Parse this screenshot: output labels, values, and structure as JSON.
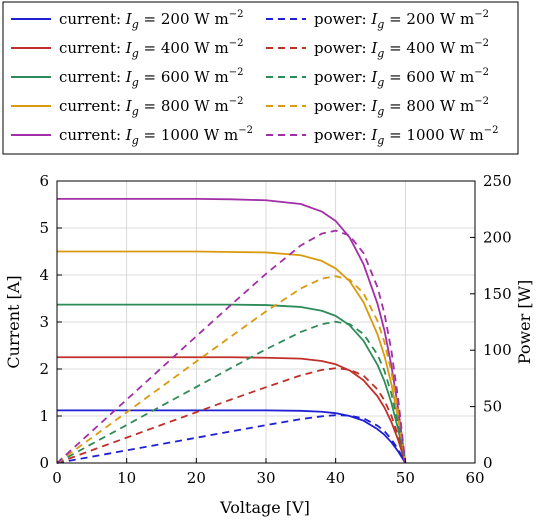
{
  "chart_data": {
    "type": "line",
    "title": "",
    "xlabel": "Voltage [V]",
    "ylabel": "Current [A]",
    "y2label": "Power [W]",
    "xlim": [
      0,
      60
    ],
    "ylim": [
      0,
      6
    ],
    "y2lim": [
      0,
      250
    ],
    "xticks": [
      "0",
      "10",
      "20",
      "30",
      "40",
      "50",
      "60"
    ],
    "yticks": [
      "0",
      "1",
      "2",
      "3",
      "4",
      "5",
      "6"
    ],
    "y2ticks": [
      "0",
      "50",
      "100",
      "150",
      "200",
      "250"
    ],
    "grid": true,
    "legend_position": "top",
    "x": [
      0,
      5,
      10,
      15,
      20,
      25,
      30,
      35,
      38,
      40,
      42,
      44,
      46,
      47,
      48,
      49,
      50
    ],
    "series": [
      {
        "name": "current: I_g = 200 W m^-2",
        "axis": "left",
        "style": "solid",
        "color": "#1f1fd6",
        "values": [
          1.12,
          1.12,
          1.12,
          1.12,
          1.12,
          1.12,
          1.12,
          1.11,
          1.09,
          1.06,
          1.0,
          0.9,
          0.72,
          0.6,
          0.44,
          0.24,
          0.0
        ]
      },
      {
        "name": "current: I_g = 400 W m^-2",
        "axis": "left",
        "style": "solid",
        "color": "#c0302a",
        "values": [
          2.25,
          2.25,
          2.25,
          2.25,
          2.25,
          2.25,
          2.24,
          2.22,
          2.17,
          2.1,
          1.97,
          1.76,
          1.42,
          1.18,
          0.87,
          0.48,
          0.0
        ]
      },
      {
        "name": "current: I_g = 600 W m^-2",
        "axis": "left",
        "style": "solid",
        "color": "#2e8b57",
        "values": [
          3.37,
          3.37,
          3.37,
          3.37,
          3.37,
          3.37,
          3.36,
          3.32,
          3.24,
          3.13,
          2.93,
          2.6,
          2.09,
          1.74,
          1.28,
          0.7,
          0.0
        ]
      },
      {
        "name": "current: I_g = 800 W m^-2",
        "axis": "left",
        "style": "solid",
        "color": "#d99a0f",
        "values": [
          4.5,
          4.5,
          4.5,
          4.5,
          4.5,
          4.49,
          4.48,
          4.42,
          4.3,
          4.14,
          3.87,
          3.42,
          2.74,
          2.28,
          1.68,
          0.92,
          0.0
        ]
      },
      {
        "name": "current: I_g = 1000 W m^-2",
        "axis": "left",
        "style": "solid",
        "color": "#a32ea8",
        "values": [
          5.62,
          5.62,
          5.62,
          5.62,
          5.62,
          5.61,
          5.59,
          5.51,
          5.35,
          5.15,
          4.8,
          4.23,
          3.39,
          2.82,
          2.07,
          1.13,
          0.0
        ]
      },
      {
        "name": "power: I_g = 200 W m^-2",
        "axis": "right",
        "style": "dashed",
        "color": "#1f1fd6",
        "values": [
          0,
          5.6,
          11.2,
          16.8,
          22.4,
          28,
          33.6,
          38.9,
          41.4,
          42.4,
          42,
          39.6,
          33.1,
          28.2,
          21.1,
          11.8,
          0
        ]
      },
      {
        "name": "power: I_g = 400 W m^-2",
        "axis": "right",
        "style": "dashed",
        "color": "#c0302a",
        "values": [
          0,
          11.3,
          22.5,
          33.8,
          45,
          56.3,
          67.2,
          77.7,
          82.5,
          84,
          82.7,
          77.4,
          65.3,
          55.5,
          41.8,
          23.5,
          0
        ]
      },
      {
        "name": "power: I_g = 600 W m^-2",
        "axis": "right",
        "style": "dashed",
        "color": "#2e8b57",
        "values": [
          0,
          16.9,
          33.7,
          50.6,
          67.4,
          84.3,
          100.8,
          116.2,
          123.1,
          125.2,
          123.1,
          114.4,
          96.1,
          81.8,
          61.4,
          34.3,
          0
        ]
      },
      {
        "name": "power: I_g = 800 W m^-2",
        "axis": "right",
        "style": "dashed",
        "color": "#d99a0f",
        "values": [
          0,
          22.5,
          45,
          67.5,
          90,
          112.3,
          134.4,
          154.7,
          163.4,
          165.6,
          162.5,
          150.5,
          126,
          107.2,
          80.6,
          45.1,
          0
        ]
      },
      {
        "name": "power: I_g = 1000 W m^-2",
        "axis": "right",
        "style": "dashed",
        "color": "#a32ea8",
        "values": [
          0,
          28.1,
          56.2,
          84.3,
          112.4,
          140.3,
          167.7,
          192.9,
          203.3,
          206,
          201.6,
          186.1,
          155.9,
          132.5,
          99.4,
          55.4,
          0
        ]
      }
    ],
    "legend": [
      {
        "kind": "current",
        "label": "current:",
        "irr": "200",
        "color": "#1f1fd6",
        "style": "solid"
      },
      {
        "kind": "power",
        "label": "power:",
        "irr": "200",
        "color": "#1f1fd6",
        "style": "dashed"
      },
      {
        "kind": "current",
        "label": "current:",
        "irr": "400",
        "color": "#c0302a",
        "style": "solid"
      },
      {
        "kind": "power",
        "label": "power:",
        "irr": "400",
        "color": "#c0302a",
        "style": "dashed"
      },
      {
        "kind": "current",
        "label": "current:",
        "irr": "600",
        "color": "#2e8b57",
        "style": "solid"
      },
      {
        "kind": "power",
        "label": "power:",
        "irr": "600",
        "color": "#2e8b57",
        "style": "dashed"
      },
      {
        "kind": "current",
        "label": "current:",
        "irr": "800",
        "color": "#d99a0f",
        "style": "solid"
      },
      {
        "kind": "power",
        "label": "power:",
        "irr": "800",
        "color": "#d99a0f",
        "style": "dashed"
      },
      {
        "kind": "current",
        "label": "current:",
        "irr": "1000",
        "color": "#a32ea8",
        "style": "solid"
      },
      {
        "kind": "power",
        "label": "power:",
        "irr": "1000",
        "color": "#a32ea8",
        "style": "dashed"
      }
    ],
    "legend_symbol": "I",
    "legend_subscript": "g",
    "legend_unit": "W m",
    "legend_exponent": "−2"
  }
}
